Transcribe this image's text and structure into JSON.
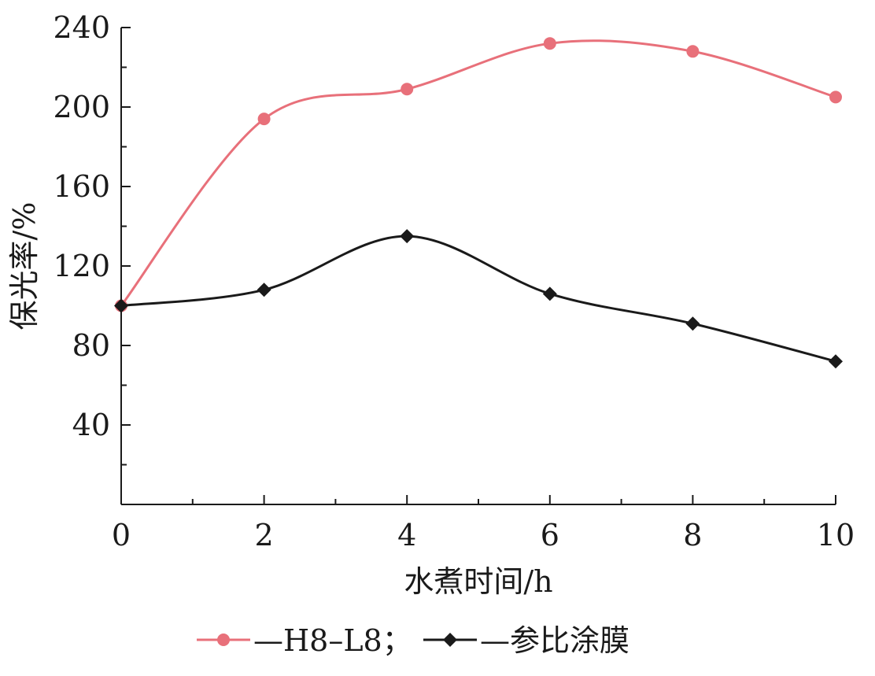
{
  "chart_data": {
    "type": "line",
    "x": [
      0,
      2,
      4,
      6,
      8,
      10
    ],
    "series": [
      {
        "name": "H8-L8",
        "values": [
          100,
          194,
          209,
          232,
          228,
          205
        ],
        "color": "#e8707a",
        "marker": "circle"
      },
      {
        "name": "参比涂膜",
        "values": [
          100,
          108,
          135,
          106,
          91,
          72
        ],
        "color": "#1a1a1a",
        "marker": "diamond"
      }
    ],
    "xlabel": "水煮时间/h",
    "ylabel": "保光率/%",
    "xlim": [
      0,
      10
    ],
    "ylim": [
      0,
      240
    ],
    "x_ticks": [
      "0",
      "2",
      "4",
      "6",
      "8",
      "10"
    ],
    "y_ticks": [
      "40",
      "80",
      "120",
      "160",
      "200",
      "240"
    ],
    "legend": {
      "position": "bottom",
      "entries": [
        "—H8–L8；",
        "—参比涂膜"
      ]
    },
    "grid": false
  }
}
